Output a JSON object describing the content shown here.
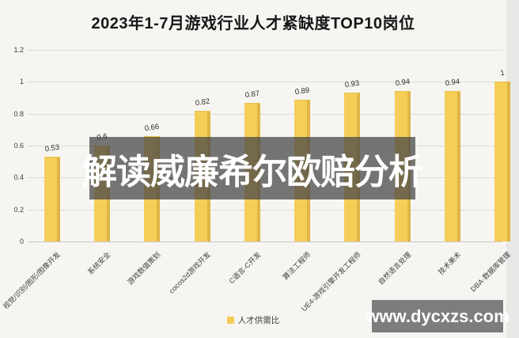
{
  "chart_data": {
    "type": "bar",
    "title": "2023年1-7月游戏行业人才紧缺度TOP10岗位",
    "categories": [
      "视觉/识别/图形/图像开发",
      "系统安全",
      "游戏数值策划",
      "cocos2d游戏开发",
      "C语言-C开发",
      "算法工程师",
      "UE4-游戏引擎开发工程师",
      "自然语言处理",
      "技术美术",
      "DBA·数据库管理"
    ],
    "values": [
      0.53,
      0.6,
      0.66,
      0.82,
      0.87,
      0.89,
      0.93,
      0.94,
      0.94,
      1
    ],
    "value_labels": [
      "0.53",
      "0.6",
      "0.66",
      "0.82",
      "0.87",
      "0.89",
      "0.93",
      "0.94",
      "0.94",
      "1"
    ],
    "xlabel": "",
    "ylabel": "",
    "ylim": [
      0,
      1.2
    ],
    "ytick_labels": [
      "0",
      "0.2",
      "0.4",
      "0.6",
      "0.8",
      "1",
      "1.2"
    ],
    "ytick_values": [
      0,
      0.2,
      0.4,
      0.6,
      0.8,
      1,
      1.2
    ],
    "grid": true,
    "legend": {
      "label": "人才供需比",
      "position": "bottom-center",
      "marker_color": "#F3CB52"
    },
    "bar_color": "#F5CE58",
    "bar_edge_color": "#DFB646"
  },
  "overlay": {
    "text": "解读威廉希尔欧赔分析",
    "text_color": "#ffffff",
    "band_color": "rgba(70,70,70,0.74)"
  },
  "watermark": {
    "text": "www.dycxzs.com",
    "text_color": "#ffffff",
    "box_color": "#7d7d7d"
  }
}
